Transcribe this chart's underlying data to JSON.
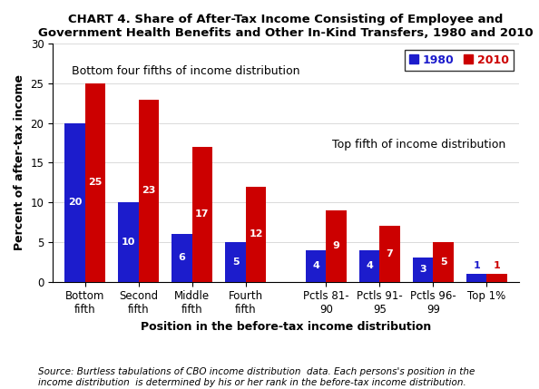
{
  "title": "CHART 4. Share of After-Tax Income Consisting of Employee and\nGovernment Health Benefits and Other In-Kind Transfers, 1980 and 2010",
  "xlabel": "Position in the before-tax income distribution",
  "ylabel": "Percent of after-tax income",
  "categories": [
    "Bottom\nfifth",
    "Second\nfifth",
    "Middle\nfifth",
    "Fourth\nfifth",
    "Pctls 81-\n90",
    "Pctls 91-\n95",
    "Pctls 96-\n99",
    "Top 1%"
  ],
  "values_1980": [
    20,
    10,
    6,
    5,
    4,
    4,
    3,
    1
  ],
  "values_2010": [
    25,
    23,
    17,
    12,
    9,
    7,
    5,
    1
  ],
  "color_1980": "#1c1ccc",
  "color_2010": "#cc0000",
  "bar_width": 0.38,
  "ylim": [
    0,
    30
  ],
  "yticks": [
    0,
    5,
    10,
    15,
    20,
    25,
    30
  ],
  "annotation_bottom_four": "Bottom four fifths of income distribution",
  "annotation_top_fifth": "Top fifth of income distribution",
  "legend_labels": [
    "1980",
    "2010"
  ],
  "source_text": "Source: Burtless tabulations of CBO income distribution  data. Each persons's position in the\nincome distribution  is determined by his or her rank in the before-tax income distribution.",
  "title_fontsize": 9.5,
  "label_fontsize": 9,
  "tick_fontsize": 8.5,
  "bar_label_fontsize": 8,
  "annotation_fontsize": 9
}
